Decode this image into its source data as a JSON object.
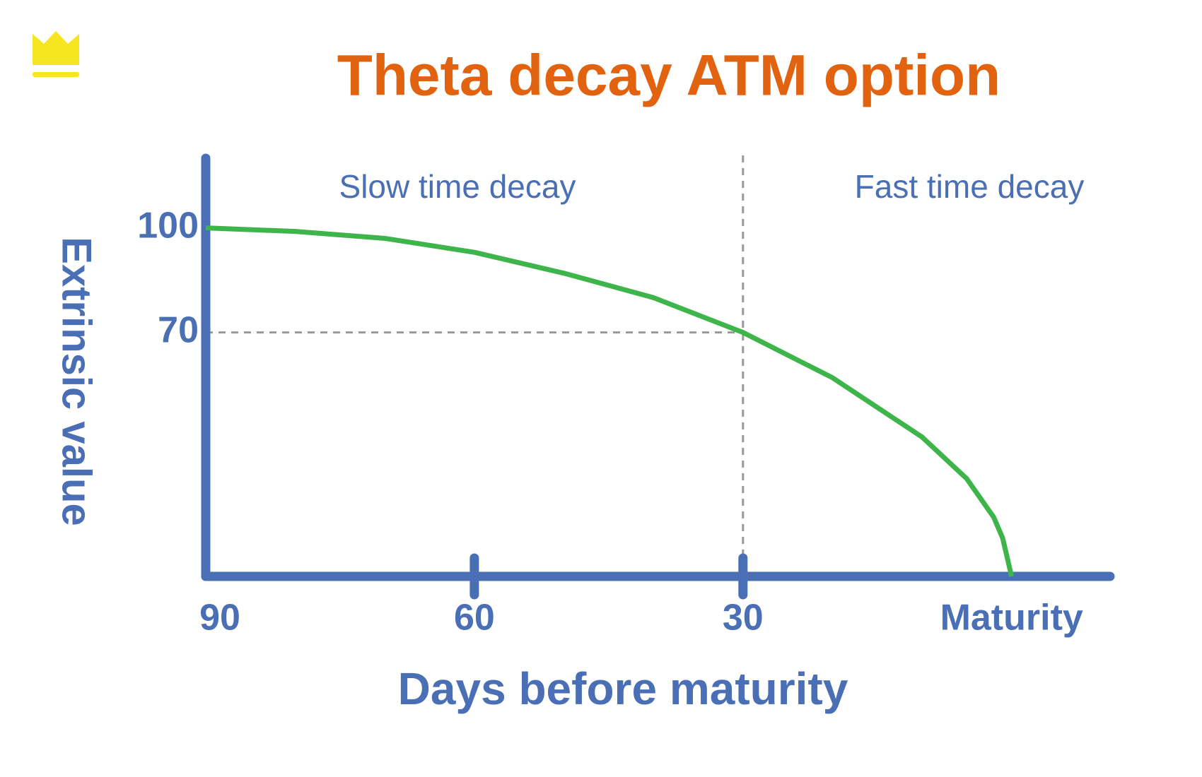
{
  "chart_data": {
    "type": "line",
    "title": "Theta decay ATM option",
    "xlabel": "Days before maturity",
    "ylabel": "Extrinsic value",
    "annotations": [
      "Slow time decay",
      "Fast time decay"
    ],
    "reference": {
      "x": 30,
      "y": 70
    },
    "x": [
      90,
      80,
      70,
      60,
      50,
      40,
      30,
      20,
      10,
      5,
      2,
      1,
      0
    ],
    "series": [
      {
        "color": "#3db54a",
        "values": [
          100,
          99,
          97,
          93,
          87,
          80,
          70,
          57,
          40,
          28,
          17,
          11,
          0
        ]
      }
    ],
    "xlim": [
      90,
      -11
    ],
    "xticks": [
      90,
      60,
      30,
      {
        "value": 0,
        "label": "Maturity"
      }
    ],
    "ylim": [
      0,
      120
    ],
    "yticks": [
      100,
      70
    ],
    "axis_color": "#4a6fb5",
    "title_color": "#e2630f",
    "grid": false
  }
}
